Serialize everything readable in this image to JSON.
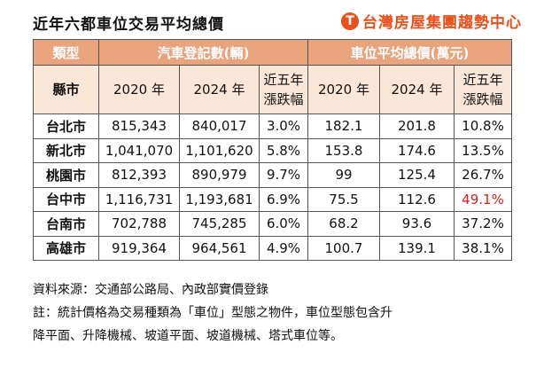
{
  "header": {
    "title": "近年六都車位交易平均總價",
    "brand": "台灣房屋集團趨勢中心",
    "brand_mark": "T"
  },
  "table": {
    "group_headers": [
      "類型",
      "汽車登記數(輛)",
      "車位平均總價(萬元)"
    ],
    "sub_headers": [
      "縣市",
      "2020 年",
      "2024 年",
      "近五年\n漲跌幅",
      "2020 年",
      "2024 年",
      "近五年\n漲跌幅"
    ],
    "rows": [
      {
        "city": "台北市",
        "cells": [
          "815,343",
          "840,017",
          "3.0%",
          "182.1",
          "201.8",
          "10.8%"
        ]
      },
      {
        "city": "新北市",
        "cells": [
          "1,041,070",
          "1,101,620",
          "5.8%",
          "153.8",
          "174.6",
          "13.5%"
        ]
      },
      {
        "city": "桃園市",
        "cells": [
          "812,393",
          "890,979",
          "9.7%",
          "99",
          "125.4",
          "26.7%"
        ]
      },
      {
        "city": "台中市",
        "cells": [
          "1,116,731",
          "1,193,681",
          "6.9%",
          "75.5",
          "112.6",
          "49.1%"
        ]
      },
      {
        "city": "台南市",
        "cells": [
          "702,788",
          "745,285",
          "6.0%",
          "68.2",
          "93.6",
          "37.2%"
        ]
      },
      {
        "city": "高雄市",
        "cells": [
          "919,364",
          "964,561",
          "4.9%",
          "100.7",
          "139.1",
          "38.1%"
        ]
      }
    ]
  },
  "notes": {
    "source": "資料來源：交通部公路局、內政部實價登錄",
    "note_line1": "註：統計價格為交易種類為「車位」型態之物件，車位型態包含升",
    "note_line2": "降平面、升降機械、坡道平面、坡道機械、塔式車位等。"
  },
  "colors": {
    "header_bg": "#e9a47e",
    "subheader_bg": "#fbe7d7",
    "brand": "#e8501c",
    "highlight": "#d21f1f"
  }
}
